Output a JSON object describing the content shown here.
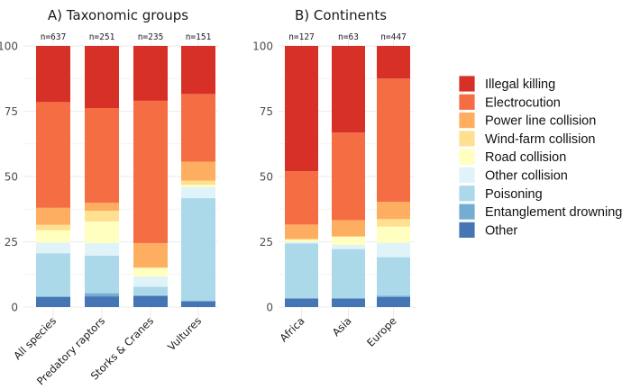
{
  "chart_data": [
    {
      "type": "bar",
      "stacked": true,
      "title": "A) Taxonomic groups",
      "xlabel": "",
      "ylabel": "",
      "ylim": [
        0,
        100
      ],
      "yticks": [
        "0",
        "25",
        "50",
        "75",
        "100"
      ],
      "grid": true,
      "categories": [
        "All species",
        "Predatory raptors",
        "Storks & Cranes",
        "Vultures"
      ],
      "n_labels": [
        "n=637",
        "n=251",
        "n=235",
        "n=151"
      ],
      "series": [
        {
          "name": "Other",
          "values": [
            3.8,
            4.1,
            4.3,
            2.3
          ]
        },
        {
          "name": "Entanglement drowning",
          "values": [
            0.3,
            1.2,
            0.0,
            0.0
          ]
        },
        {
          "name": "Poisoning",
          "values": [
            16.5,
            14.4,
            3.5,
            39.4
          ]
        },
        {
          "name": "Other collision",
          "values": [
            4.1,
            4.8,
            3.9,
            4.3
          ]
        },
        {
          "name": "Road collision",
          "values": [
            4.7,
            8.3,
            3.2,
            0.8
          ]
        },
        {
          "name": "Wind-farm collision",
          "values": [
            2.1,
            4.1,
            0.3,
            1.6
          ]
        },
        {
          "name": "Power line collision",
          "values": [
            6.5,
            3.1,
            9.3,
            7.3
          ]
        },
        {
          "name": "Electrocution",
          "values": [
            40.5,
            36.2,
            54.5,
            25.9
          ]
        },
        {
          "name": "Illegal killing",
          "values": [
            21.5,
            23.8,
            21.0,
            18.4
          ]
        }
      ]
    },
    {
      "type": "bar",
      "stacked": true,
      "title": "B) Continents",
      "xlabel": "",
      "ylabel": "",
      "ylim": [
        0,
        100
      ],
      "yticks": [
        "0",
        "25",
        "50",
        "75",
        "100"
      ],
      "grid": true,
      "categories": [
        "Africa",
        "Asia",
        "Europe"
      ],
      "n_labels": [
        "n=127",
        "n=63",
        "n=447"
      ],
      "series": [
        {
          "name": "Other",
          "values": [
            3.3,
            3.3,
            3.8
          ]
        },
        {
          "name": "Entanglement drowning",
          "values": [
            0.0,
            0.0,
            0.6
          ]
        },
        {
          "name": "Poisoning",
          "values": [
            21.1,
            18.9,
            14.7
          ]
        },
        {
          "name": "Other collision",
          "values": [
            0.6,
            1.6,
            5.5
          ]
        },
        {
          "name": "Road collision",
          "values": [
            0.7,
            3.1,
            6.2
          ]
        },
        {
          "name": "Wind-farm collision",
          "values": [
            0.4,
            0.2,
            2.9
          ]
        },
        {
          "name": "Power line collision",
          "values": [
            5.5,
            6.2,
            6.6
          ]
        },
        {
          "name": "Electrocution",
          "values": [
            20.4,
            33.5,
            47.2
          ]
        },
        {
          "name": "Illegal killing",
          "values": [
            48.0,
            33.2,
            12.5
          ]
        }
      ]
    }
  ],
  "legend": {
    "placement": "right",
    "items": [
      {
        "label": "Illegal killing",
        "color": "#d73027"
      },
      {
        "label": "Electrocution",
        "color": "#f46d43"
      },
      {
        "label": "Power line collision",
        "color": "#fdae61"
      },
      {
        "label": "Wind-farm collision",
        "color": "#fee090"
      },
      {
        "label": "Road collision",
        "color": "#ffffbf"
      },
      {
        "label": "Other collision",
        "color": "#e0f3f8"
      },
      {
        "label": "Poisoning",
        "color": "#abd9e9"
      },
      {
        "label": "Entanglement drowning",
        "color": "#74add1"
      },
      {
        "label": "Other",
        "color": "#4575b4"
      }
    ]
  },
  "series_colors": {
    "Illegal killing": "#d73027",
    "Electrocution": "#f46d43",
    "Power line collision": "#fdae61",
    "Wind-farm collision": "#fee090",
    "Road collision": "#ffffbf",
    "Other collision": "#e0f3f8",
    "Poisoning": "#abd9e9",
    "Entanglement drowning": "#74add1",
    "Other": "#4575b4"
  }
}
